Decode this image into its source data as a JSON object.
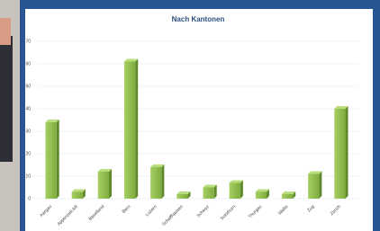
{
  "chart_data": {
    "type": "bar",
    "title": "Nach Kantonen",
    "categories": [
      "Aargau",
      "Appenzell AR",
      "Baselland",
      "Bern",
      "Luzern",
      "Schaffhausen",
      "Schwyz",
      "Solothurn",
      "Thurgau",
      "Wallis",
      "Zug",
      "Zürich"
    ],
    "values": [
      34,
      3,
      12,
      61,
      14,
      2,
      5,
      7,
      3,
      2,
      11,
      40
    ],
    "color": "#8dbb4c",
    "ylim": [
      0,
      70
    ],
    "yticks": [
      0,
      10,
      20,
      30,
      40,
      50,
      60,
      70
    ],
    "grid": true
  }
}
